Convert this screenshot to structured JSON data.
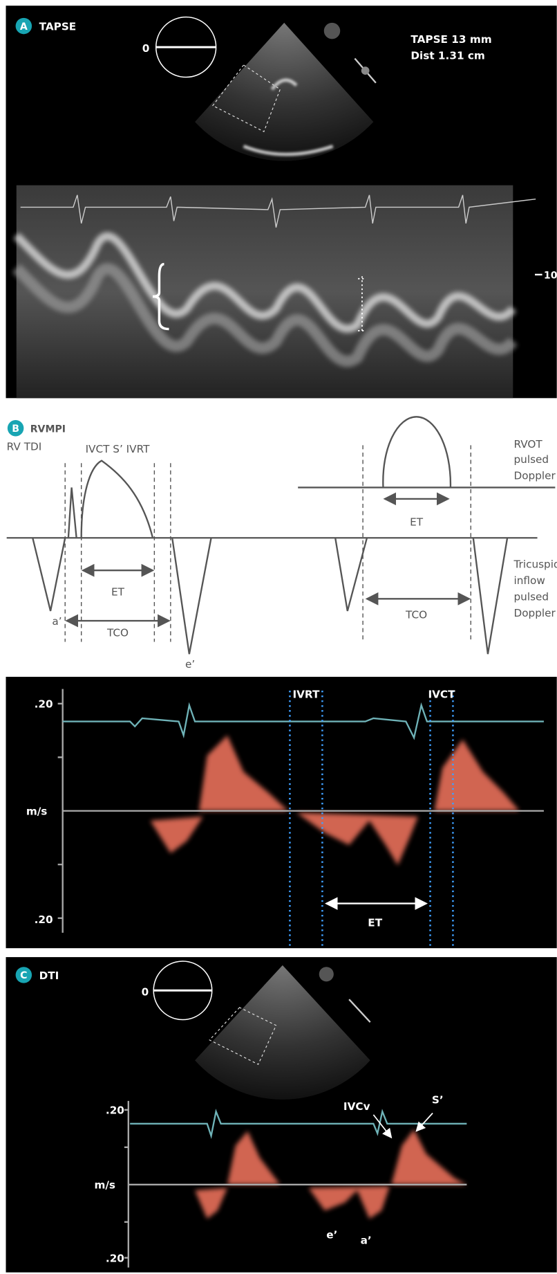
{
  "panel_a": {
    "badge": "A",
    "title": "TAPSE",
    "angle_label": "0",
    "measurement": "TAPSE 13 mm",
    "distance": "Dist 1.31 cm",
    "depth_label": "10"
  },
  "panel_b": {
    "badge": "B",
    "title": "RVMPI",
    "left": {
      "label": "RV TDI",
      "waves": "IVCT S’ IVRT",
      "a_wave": "a’",
      "e_wave": "e’",
      "et": "ET",
      "tco": "TCO"
    },
    "right": {
      "top_label": [
        "RVOT",
        "pulsed",
        "Doppler"
      ],
      "bottom_label": [
        "Tricuspid",
        "inflow",
        "pulsed",
        "Doppler"
      ],
      "et": "ET",
      "tco": "TCO"
    }
  },
  "doppler": {
    "top_tick": ".20",
    "unit": "m/s",
    "bottom_tick": ".20",
    "ivrt": "IVRT",
    "ivct": "IVCT",
    "et": "ET"
  },
  "panel_c": {
    "badge": "C",
    "title": "DTI",
    "angle_label": "0",
    "top_tick": ".20",
    "unit": "m/s",
    "bottom_tick": ".20",
    "ivcv": "IVCv",
    "s_wave": "S’",
    "e_wave": "e’",
    "a_wave": "a’"
  }
}
